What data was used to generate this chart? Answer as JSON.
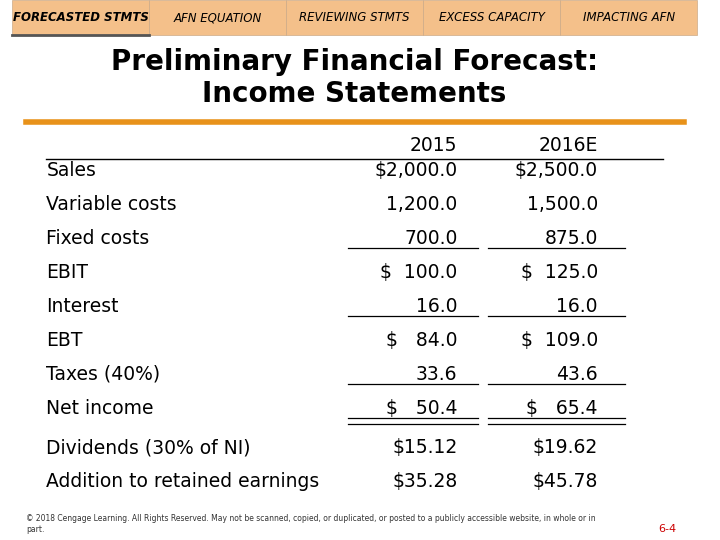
{
  "title": "Preliminary Financial Forecast:\nIncome Statements",
  "nav_tabs": [
    "FORECASTED STMTS",
    "AFN EQUATION",
    "REVIEWING STMTS",
    "EXCESS CAPACITY",
    "IMPACTING AFN"
  ],
  "nav_bg": "#F4C08A",
  "nav_active": 0,
  "orange_line_color": "#E8921A",
  "header_row": [
    "",
    "2015",
    "2016E"
  ],
  "rows": [
    {
      "label": "Sales",
      "v2015": "$2,000.0",
      "v2016": "$2,500.0",
      "underline_single_2015": false,
      "underline_single_2016": false,
      "dollar_prefix": false
    },
    {
      "label": "Variable costs",
      "v2015": "1,200.0",
      "v2016": "1,500.0",
      "underline_single_2015": false,
      "underline_single_2016": false,
      "dollar_prefix": false
    },
    {
      "label": "Fixed costs",
      "v2015": "700.0",
      "v2016": "875.0",
      "underline_single_2015": true,
      "underline_single_2016": true,
      "dollar_prefix": false
    },
    {
      "label": "EBIT",
      "v2015": "$  100.0",
      "v2016": "$  125.0",
      "underline_single_2015": false,
      "underline_single_2016": false,
      "dollar_prefix": false
    },
    {
      "label": "Interest",
      "v2015": "16.0",
      "v2016": "16.0",
      "underline_single_2015": true,
      "underline_single_2016": true,
      "dollar_prefix": false
    },
    {
      "label": "EBT",
      "v2015": "$   84.0",
      "v2016": "$  109.0",
      "underline_single_2015": false,
      "underline_single_2016": false,
      "dollar_prefix": false
    },
    {
      "label": "Taxes (40%)",
      "v2015": "33.6",
      "v2016": "43.6",
      "underline_single_2015": true,
      "underline_single_2016": true,
      "dollar_prefix": false
    },
    {
      "label": "Net income",
      "v2015": "$   50.4",
      "v2016": "$   65.4",
      "underline_single_2015": false,
      "underline_single_2016": false,
      "dollar_prefix": false,
      "double_underline": true
    }
  ],
  "divider_rows": [
    {
      "label": "Dividends (30% of NI)",
      "v2015": "$15.12",
      "v2016": "$19.62"
    },
    {
      "label": "Addition to retained earnings",
      "v2015": "$35.28",
      "v2016": "$45.78"
    }
  ],
  "footnote": "6-4",
  "footnote_color": "#CC0000",
  "bg_color": "#FFFFFF",
  "text_color": "#000000",
  "title_fontsize": 20,
  "table_fontsize": 13.5,
  "nav_fontsize": 8.5
}
